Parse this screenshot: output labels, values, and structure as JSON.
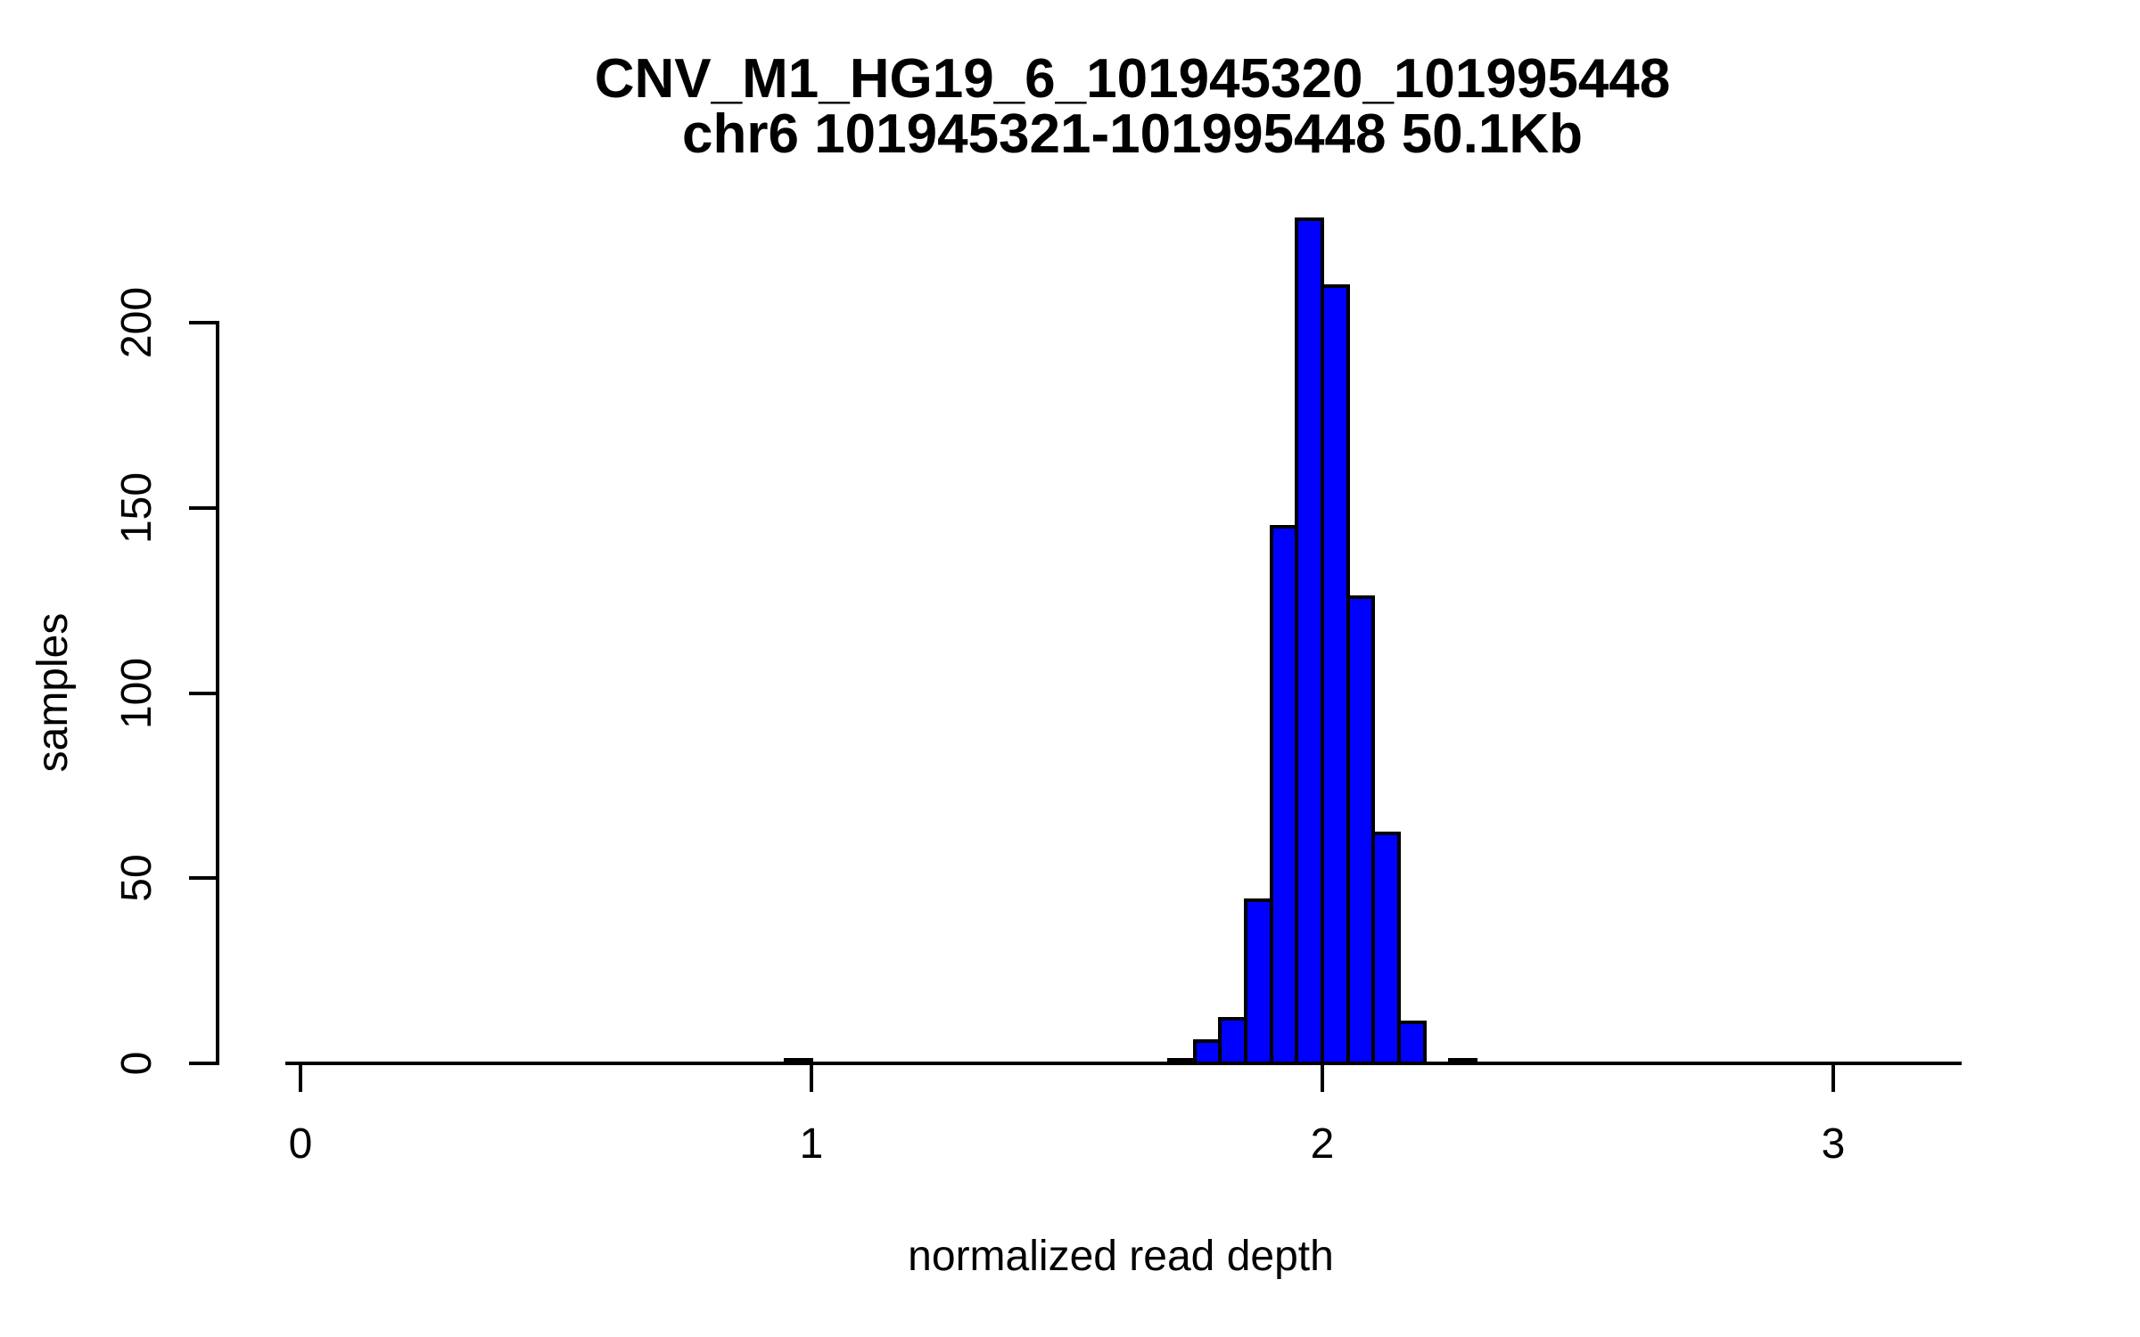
{
  "chart_data": {
    "type": "bar",
    "subtype": "histogram",
    "title_line1": "CNV_M1_HG19_6_101945320_101995448",
    "title_line2": "chr6 101945321-101995448 50.1Kb",
    "xlabel": "normalized read depth",
    "ylabel": "samples",
    "x_tick_values": [
      0,
      1,
      2,
      3
    ],
    "x_tick_labels": [
      "0",
      "1",
      "2",
      "3"
    ],
    "y_tick_values": [
      0,
      50,
      100,
      150,
      200
    ],
    "y_tick_labels": [
      "0",
      "50",
      "100",
      "150",
      "200"
    ],
    "xlim": [
      -0.03,
      3.28
    ],
    "ylim": [
      0,
      230
    ],
    "grid": false,
    "legend": "none",
    "bin_width": 0.05,
    "bins": [
      {
        "x0": 0.95,
        "x1": 1.0,
        "count": 1
      },
      {
        "x0": 1.7,
        "x1": 1.75,
        "count": 1
      },
      {
        "x0": 1.75,
        "x1": 1.8,
        "count": 6
      },
      {
        "x0": 1.8,
        "x1": 1.85,
        "count": 12
      },
      {
        "x0": 1.85,
        "x1": 1.9,
        "count": 44
      },
      {
        "x0": 1.9,
        "x1": 1.95,
        "count": 145
      },
      {
        "x0": 1.95,
        "x1": 2.0,
        "count": 228
      },
      {
        "x0": 2.0,
        "x1": 2.05,
        "count": 210
      },
      {
        "x0": 2.05,
        "x1": 2.1,
        "count": 126
      },
      {
        "x0": 2.1,
        "x1": 2.15,
        "count": 62
      },
      {
        "x0": 2.15,
        "x1": 2.2,
        "count": 11
      },
      {
        "x0": 2.2,
        "x1": 2.25,
        "count": 0
      },
      {
        "x0": 2.25,
        "x1": 2.3,
        "count": 1
      }
    ],
    "colors": {
      "bar_fill": "#0000FF",
      "bar_border": "#000000",
      "axis": "#000000",
      "text": "#000000",
      "background": "#FFFFFF"
    }
  }
}
